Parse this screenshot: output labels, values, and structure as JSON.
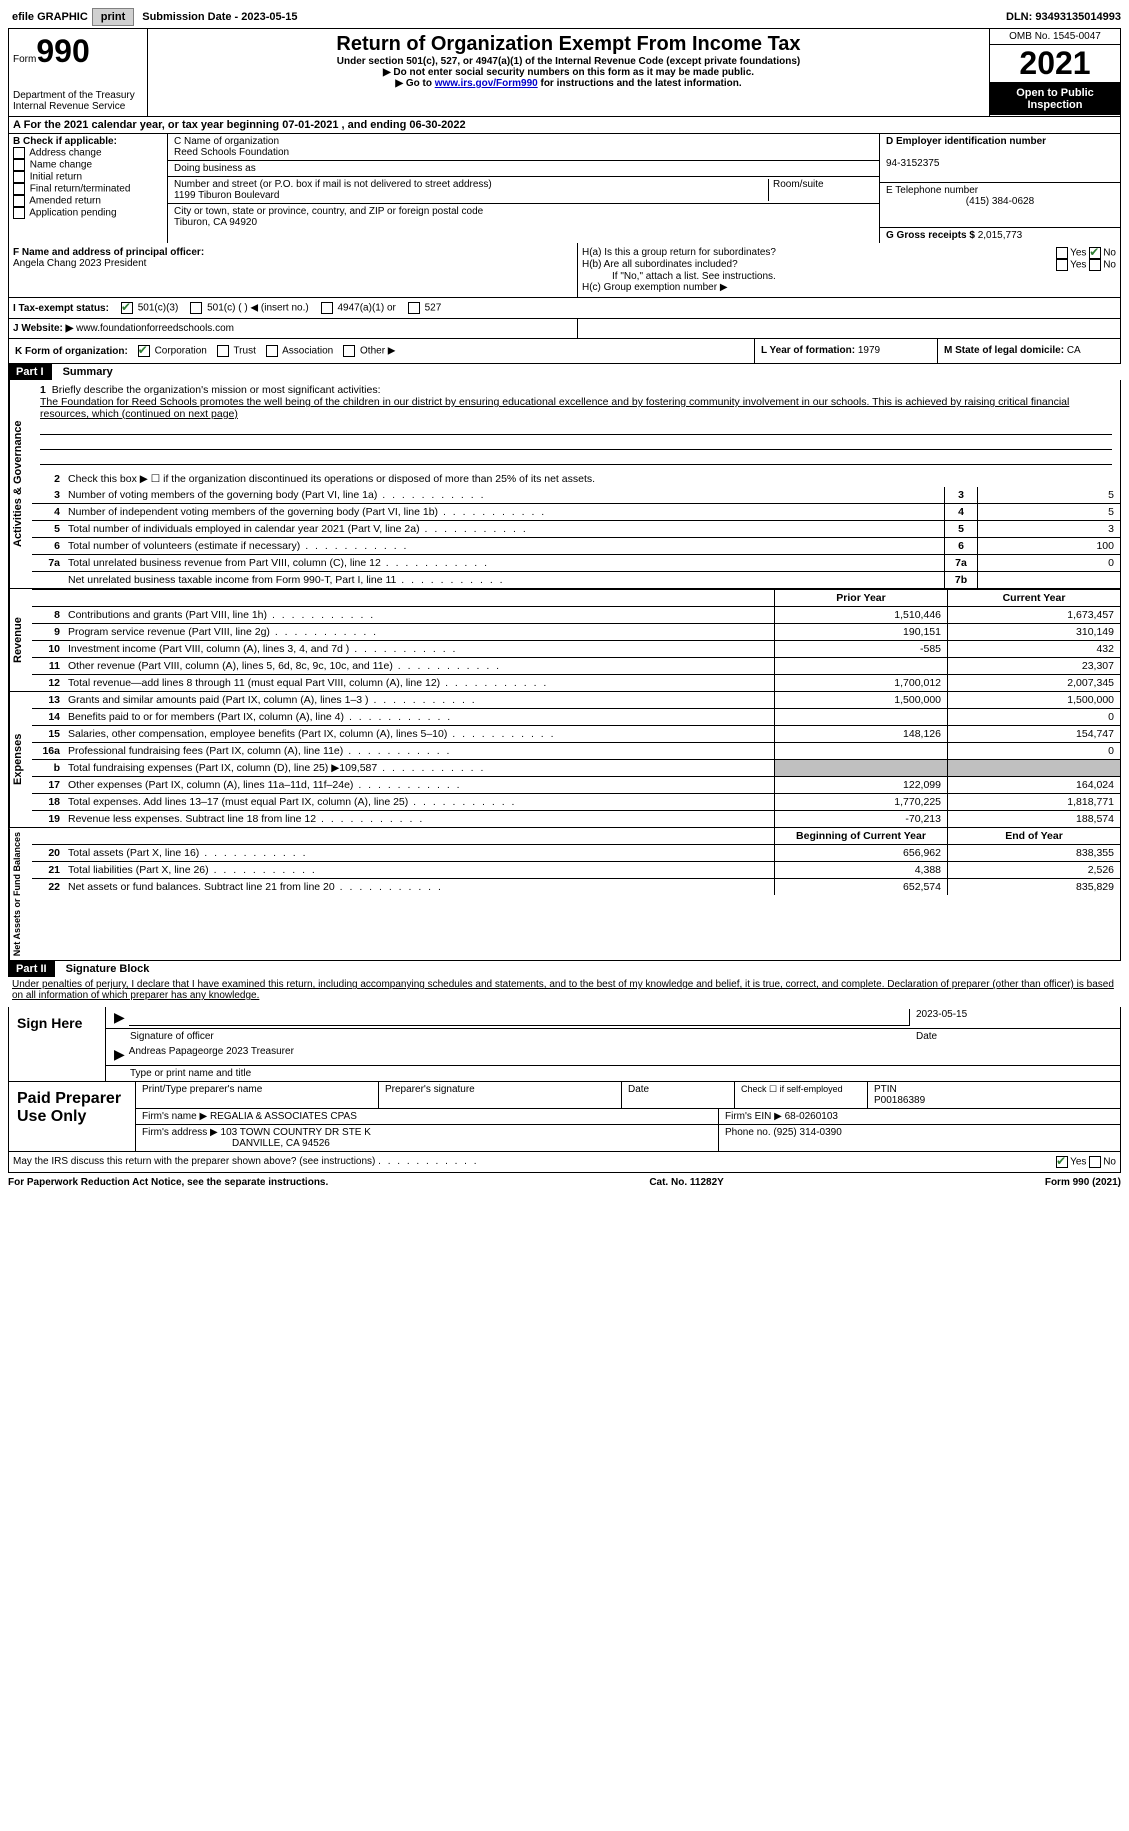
{
  "topbar": {
    "efile_label": "efile GRAPHIC",
    "print_btn": "print",
    "submission_label": "Submission Date - 2023-05-15",
    "dln": "DLN: 93493135014993"
  },
  "header": {
    "form_prefix": "Form",
    "form_number": "990",
    "dept": "Department of the Treasury",
    "irs": "Internal Revenue Service",
    "title": "Return of Organization Exempt From Income Tax",
    "subtitle": "Under section 501(c), 527, or 4947(a)(1) of the Internal Revenue Code (except private foundations)",
    "note1": "▶ Do not enter social security numbers on this form as it may be made public.",
    "note2_prefix": "▶ Go to ",
    "note2_link": "www.irs.gov/Form990",
    "note2_suffix": " for instructions and the latest information.",
    "omb": "OMB No. 1545-0047",
    "year": "2021",
    "inspection": "Open to Public Inspection"
  },
  "period": "For the 2021 calendar year, or tax year beginning 07-01-2021   , and ending 06-30-2022",
  "section_b": {
    "label": "B Check if applicable:",
    "items": [
      "Address change",
      "Name change",
      "Initial return",
      "Final return/terminated",
      "Amended return",
      "Application pending"
    ]
  },
  "section_c": {
    "name_label": "C Name of organization",
    "name": "Reed Schools Foundation",
    "dba_label": "Doing business as",
    "addr_label": "Number and street (or P.O. box if mail is not delivered to street address)",
    "room_label": "Room/suite",
    "addr": "1199 Tiburon Boulevard",
    "city_label": "City or town, state or province, country, and ZIP or foreign postal code",
    "city": "Tiburon, CA  94920"
  },
  "section_d": {
    "ein_label": "D Employer identification number",
    "ein": "94-3152375",
    "phone_label": "E Telephone number",
    "phone": "(415) 384-0628",
    "gross_label": "G Gross receipts $",
    "gross": "2,015,773"
  },
  "section_f": {
    "label": "F Name and address of principal officer:",
    "name": "Angela Chang 2023 President"
  },
  "section_h": {
    "ha": "H(a)  Is this a group return for subordinates?",
    "hb": "H(b)  Are all subordinates included?",
    "hb_note": "If \"No,\" attach a list. See instructions.",
    "hc": "H(c)  Group exemption number ▶",
    "yes": "Yes",
    "no": "No"
  },
  "section_i": {
    "label": "I  Tax-exempt status:",
    "opt1": "501(c)(3)",
    "opt2": "501(c) (  ) ◀ (insert no.)",
    "opt3": "4947(a)(1) or",
    "opt4": "527"
  },
  "section_j": {
    "label": "J  Website: ▶",
    "value": "www.foundationforreedschools.com"
  },
  "section_k": {
    "label": "K Form of organization:",
    "corp": "Corporation",
    "trust": "Trust",
    "assoc": "Association",
    "other": "Other ▶",
    "year_label": "L Year of formation:",
    "year": "1979",
    "state_label": "M State of legal domicile:",
    "state": "CA"
  },
  "part1": {
    "header": "Part I",
    "title": "Summary",
    "mission_label": "Briefly describe the organization's mission or most significant activities:",
    "mission": "The Foundation for Reed Schools promotes the well being of the children in our district by ensuring educational excellence and by fostering community involvement in our schools. This is achieved by raising critical financial resources, which (continued on next page)",
    "line2": "Check this box ▶ ☐ if the organization discontinued its operations or disposed of more than 25% of its net assets.",
    "labels": {
      "activities": "Activities & Governance",
      "revenue": "Revenue",
      "expenses": "Expenses",
      "netassets": "Net Assets or Fund Balances"
    },
    "lines": [
      {
        "n": "3",
        "t": "Number of voting members of the governing body (Part VI, line 1a)",
        "box": "3",
        "v": "5"
      },
      {
        "n": "4",
        "t": "Number of independent voting members of the governing body (Part VI, line 1b)",
        "box": "4",
        "v": "5"
      },
      {
        "n": "5",
        "t": "Total number of individuals employed in calendar year 2021 (Part V, line 2a)",
        "box": "5",
        "v": "3"
      },
      {
        "n": "6",
        "t": "Total number of volunteers (estimate if necessary)",
        "box": "6",
        "v": "100"
      },
      {
        "n": "7a",
        "t": "Total unrelated business revenue from Part VIII, column (C), line 12",
        "box": "7a",
        "v": "0"
      },
      {
        "n": "",
        "t": "Net unrelated business taxable income from Form 990-T, Part I, line 11",
        "box": "7b",
        "v": ""
      }
    ],
    "prior_label": "Prior Year",
    "current_label": "Current Year",
    "rev_lines": [
      {
        "n": "8",
        "t": "Contributions and grants (Part VIII, line 1h)",
        "p": "1,510,446",
        "c": "1,673,457"
      },
      {
        "n": "9",
        "t": "Program service revenue (Part VIII, line 2g)",
        "p": "190,151",
        "c": "310,149"
      },
      {
        "n": "10",
        "t": "Investment income (Part VIII, column (A), lines 3, 4, and 7d )",
        "p": "-585",
        "c": "432"
      },
      {
        "n": "11",
        "t": "Other revenue (Part VIII, column (A), lines 5, 6d, 8c, 9c, 10c, and 11e)",
        "p": "",
        "c": "23,307"
      },
      {
        "n": "12",
        "t": "Total revenue—add lines 8 through 11 (must equal Part VIII, column (A), line 12)",
        "p": "1,700,012",
        "c": "2,007,345"
      }
    ],
    "exp_lines": [
      {
        "n": "13",
        "t": "Grants and similar amounts paid (Part IX, column (A), lines 1–3 )",
        "p": "1,500,000",
        "c": "1,500,000"
      },
      {
        "n": "14",
        "t": "Benefits paid to or for members (Part IX, column (A), line 4)",
        "p": "",
        "c": "0"
      },
      {
        "n": "15",
        "t": "Salaries, other compensation, employee benefits (Part IX, column (A), lines 5–10)",
        "p": "148,126",
        "c": "154,747"
      },
      {
        "n": "16a",
        "t": "Professional fundraising fees (Part IX, column (A), line 11e)",
        "p": "",
        "c": "0"
      },
      {
        "n": "b",
        "t": "Total fundraising expenses (Part IX, column (D), line 25) ▶109,587",
        "p": "shaded",
        "c": "shaded"
      },
      {
        "n": "17",
        "t": "Other expenses (Part IX, column (A), lines 11a–11d, 11f–24e)",
        "p": "122,099",
        "c": "164,024"
      },
      {
        "n": "18",
        "t": "Total expenses. Add lines 13–17 (must equal Part IX, column (A), line 25)",
        "p": "1,770,225",
        "c": "1,818,771"
      },
      {
        "n": "19",
        "t": "Revenue less expenses. Subtract line 18 from line 12",
        "p": "-70,213",
        "c": "188,574"
      }
    ],
    "begin_label": "Beginning of Current Year",
    "end_label": "End of Year",
    "net_lines": [
      {
        "n": "20",
        "t": "Total assets (Part X, line 16)",
        "p": "656,962",
        "c": "838,355"
      },
      {
        "n": "21",
        "t": "Total liabilities (Part X, line 26)",
        "p": "4,388",
        "c": "2,526"
      },
      {
        "n": "22",
        "t": "Net assets or fund balances. Subtract line 21 from line 20",
        "p": "652,574",
        "c": "835,829"
      }
    ]
  },
  "part2": {
    "header": "Part II",
    "title": "Signature Block",
    "declaration": "Under penalties of perjury, I declare that I have examined this return, including accompanying schedules and statements, and to the best of my knowledge and belief, it is true, correct, and complete. Declaration of preparer (other than officer) is based on all information of which preparer has any knowledge.",
    "sign_here": "Sign Here",
    "sig_officer": "Signature of officer",
    "date": "Date",
    "sig_date": "2023-05-15",
    "officer_name": "Andreas Papageorge 2023 Treasurer",
    "type_name": "Type or print name and title"
  },
  "preparer": {
    "label": "Paid Preparer Use Only",
    "print_name": "Print/Type preparer's name",
    "prep_sig": "Preparer's signature",
    "date": "Date",
    "check_self": "Check ☐ if self-employed",
    "ptin_label": "PTIN",
    "ptin": "P00186389",
    "firm_name_label": "Firm's name    ▶",
    "firm_name": "REGALIA & ASSOCIATES CPAS",
    "firm_ein_label": "Firm's EIN ▶",
    "firm_ein": "68-0260103",
    "firm_addr_label": "Firm's address ▶",
    "firm_addr": "103 TOWN COUNTRY DR STE K",
    "firm_city": "DANVILLE, CA  94526",
    "phone_label": "Phone no.",
    "phone": "(925) 314-0390"
  },
  "discuss": "May the IRS discuss this return with the preparer shown above? (see instructions)",
  "footer": {
    "pra": "For Paperwork Reduction Act Notice, see the separate instructions.",
    "cat": "Cat. No. 11282Y",
    "form": "Form 990 (2021)"
  }
}
